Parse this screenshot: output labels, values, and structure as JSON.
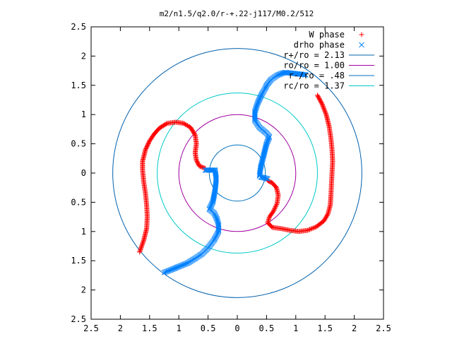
{
  "chart_data": {
    "type": "scatter",
    "title": "m2/n1.5/q2.0/r-+.22-j117/M0.2/512",
    "xlim": [
      2.5,
      -2.5
    ],
    "ylim": [
      -2.5,
      2.5
    ],
    "xticks": [
      {
        "value": -2.5,
        "label": "2.5"
      },
      {
        "value": -2,
        "label": "2"
      },
      {
        "value": -1.5,
        "label": "1.5"
      },
      {
        "value": -1,
        "label": "1"
      },
      {
        "value": -0.5,
        "label": "0.5"
      },
      {
        "value": 0,
        "label": "0"
      },
      {
        "value": 0.5,
        "label": "0.5"
      },
      {
        "value": 1,
        "label": "1"
      },
      {
        "value": 1.5,
        "label": "1.5"
      },
      {
        "value": 2,
        "label": "2"
      },
      {
        "value": 2.5,
        "label": "2.5"
      }
    ],
    "yticks": [
      {
        "value": -2.5,
        "label": "2.5"
      },
      {
        "value": -2,
        "label": "2"
      },
      {
        "value": -1.5,
        "label": "1.5"
      },
      {
        "value": -1,
        "label": "1"
      },
      {
        "value": -0.5,
        "label": "0.5"
      },
      {
        "value": 0,
        "label": "0"
      },
      {
        "value": 0.5,
        "label": "0.5"
      },
      {
        "value": 1,
        "label": "1"
      },
      {
        "value": 1.5,
        "label": "1.5"
      },
      {
        "value": 2,
        "label": "2"
      },
      {
        "value": 2.5,
        "label": "2.5"
      }
    ],
    "grid": false,
    "legend_position": "top-right",
    "series": [
      {
        "name": "W phase",
        "marker": "plus",
        "color": "#ff0000",
        "arms": [
          [
            [
              -1.37,
              1.33
            ],
            [
              -1.45,
              1.18
            ],
            [
              -1.52,
              1.0
            ],
            [
              -1.57,
              0.8
            ],
            [
              -1.6,
              0.6
            ],
            [
              -1.62,
              0.4
            ],
            [
              -1.63,
              0.2
            ],
            [
              -1.62,
              0.0
            ],
            [
              -1.61,
              -0.2
            ],
            [
              -1.6,
              -0.4
            ],
            [
              -1.59,
              -0.55
            ],
            [
              -1.55,
              -0.7
            ],
            [
              -1.48,
              -0.82
            ],
            [
              -1.35,
              -0.92
            ],
            [
              -1.2,
              -0.98
            ],
            [
              -1.05,
              -1.0
            ],
            [
              -0.9,
              -0.98
            ],
            [
              -0.75,
              -0.95
            ],
            [
              -0.6,
              -0.93
            ],
            [
              -0.52,
              -0.85
            ],
            [
              -0.55,
              -0.75
            ],
            [
              -0.62,
              -0.65
            ],
            [
              -0.68,
              -0.52
            ],
            [
              -0.7,
              -0.38
            ],
            [
              -0.67,
              -0.25
            ],
            [
              -0.6,
              -0.17
            ],
            [
              -0.52,
              -0.13
            ]
          ],
          [
            [
              1.67,
              -1.35
            ],
            [
              1.6,
              -1.15
            ],
            [
              1.55,
              -0.95
            ],
            [
              1.54,
              -0.75
            ],
            [
              1.55,
              -0.55
            ],
            [
              1.57,
              -0.35
            ],
            [
              1.6,
              -0.15
            ],
            [
              1.62,
              0.05
            ],
            [
              1.62,
              0.2
            ],
            [
              1.57,
              0.4
            ],
            [
              1.5,
              0.55
            ],
            [
              1.42,
              0.67
            ],
            [
              1.33,
              0.77
            ],
            [
              1.2,
              0.85
            ],
            [
              1.05,
              0.87
            ],
            [
              0.92,
              0.85
            ],
            [
              0.8,
              0.78
            ],
            [
              0.72,
              0.65
            ],
            [
              0.7,
              0.5
            ],
            [
              0.72,
              0.35
            ],
            [
              0.7,
              0.22
            ],
            [
              0.65,
              0.12
            ],
            [
              0.55,
              0.08
            ]
          ]
        ]
      },
      {
        "name": "drho phase",
        "marker": "cross",
        "color": "#0080ff",
        "arms": [
          [
            [
              -0.52,
              -0.1
            ],
            [
              -0.45,
              -0.08
            ],
            [
              -0.4,
              -0.07
            ],
            [
              -0.38,
              -0.05
            ],
            [
              -0.4,
              0.1
            ],
            [
              -0.45,
              0.3
            ],
            [
              -0.5,
              0.5
            ],
            [
              -0.55,
              0.62
            ],
            [
              -0.5,
              0.68
            ],
            [
              -0.38,
              0.78
            ],
            [
              -0.3,
              0.9
            ],
            [
              -0.3,
              1.05
            ],
            [
              -0.35,
              1.2
            ],
            [
              -0.42,
              1.35
            ],
            [
              -0.48,
              1.45
            ],
            [
              -0.5,
              1.5
            ],
            [
              -0.58,
              1.6
            ],
            [
              -0.68,
              1.67
            ],
            [
              -0.75,
              1.7
            ],
            [
              -0.82,
              1.72
            ],
            [
              -1.17,
              1.68
            ]
          ],
          [
            [
              0.55,
              0.05
            ],
            [
              0.45,
              0.05
            ],
            [
              0.38,
              0.05
            ],
            [
              0.36,
              -0.1
            ],
            [
              0.38,
              -0.3
            ],
            [
              0.42,
              -0.5
            ],
            [
              0.48,
              -0.62
            ],
            [
              0.4,
              -0.68
            ],
            [
              0.35,
              -0.78
            ],
            [
              0.32,
              -0.88
            ],
            [
              0.32,
              -1.0
            ],
            [
              0.4,
              -1.15
            ],
            [
              0.5,
              -1.28
            ],
            [
              0.6,
              -1.38
            ],
            [
              0.72,
              -1.46
            ],
            [
              0.85,
              -1.54
            ],
            [
              1.0,
              -1.6
            ],
            [
              1.12,
              -1.65
            ],
            [
              1.25,
              -1.7
            ]
          ]
        ]
      }
    ],
    "circles": [
      {
        "name": "r+/ro = 2.13",
        "radius": 2.13,
        "color": "#0060ad"
      },
      {
        "name": "ro/ro = 1.00",
        "radius": 1.0,
        "color": "#a000a0"
      },
      {
        "name": "r-/ro = .48",
        "radius": 0.48,
        "color": "#0072bd"
      },
      {
        "name": "rc/ro = 1.37",
        "radius": 1.37,
        "color": "#00c8c8"
      }
    ]
  }
}
